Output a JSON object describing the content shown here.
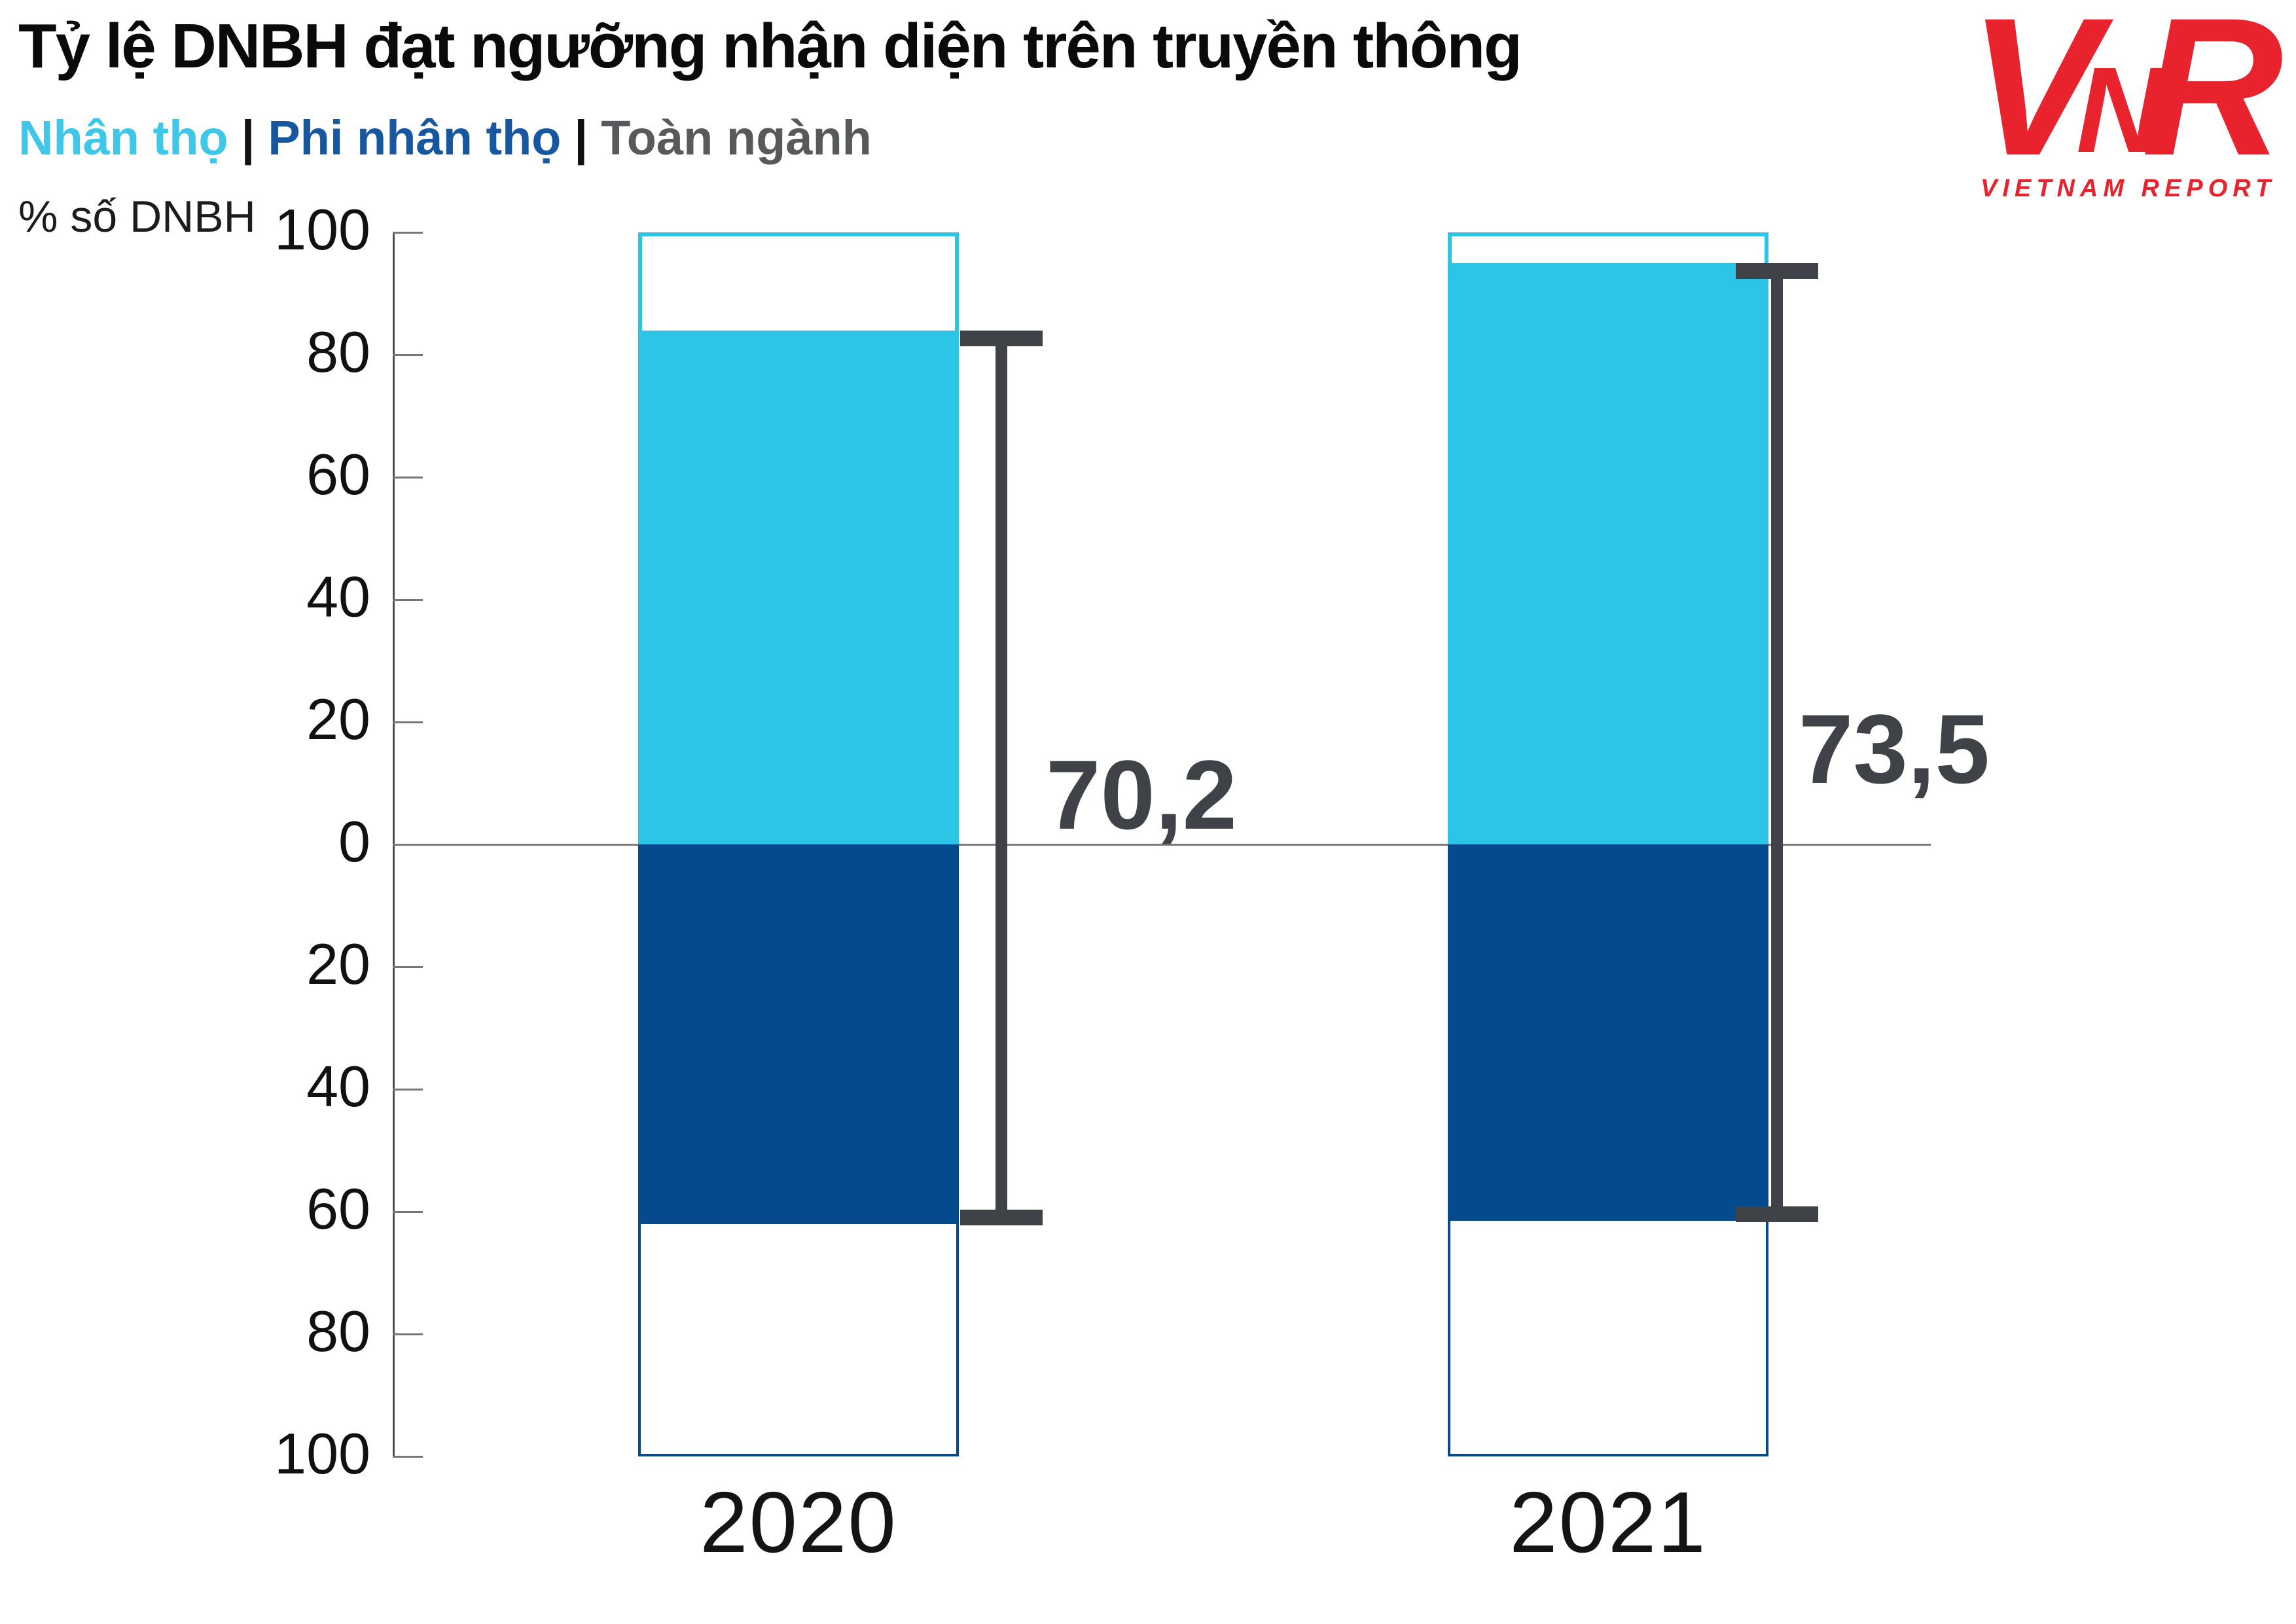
{
  "title": "Tỷ lệ DNBH đạt ngưỡng nhận diện trên truyền thông",
  "legend": {
    "separator": "|",
    "items": [
      {
        "label": "Nhân thọ",
        "color": "#3fc7e9"
      },
      {
        "label": "Phi nhân thọ",
        "color": "#1757a0"
      },
      {
        "label": "Toàn ngành",
        "color": "#58595b"
      }
    ]
  },
  "axis": {
    "unit_label": "% số DNBH",
    "tick_step": 20,
    "max": 100,
    "min": -100,
    "tick_labels": [
      100,
      80,
      60,
      40,
      20,
      0,
      20,
      40,
      60,
      80,
      100
    ],
    "labels_absolute": true
  },
  "logo": {
    "letters": [
      "V",
      "N",
      "R"
    ],
    "wordmark": "VIETNAM REPORT",
    "color": "#e8232d"
  },
  "chart_data": {
    "type": "bar",
    "subtype": "diverging stacked bars with range brackets",
    "title": "Tỷ lệ DNBH đạt ngưỡng nhận diện trên truyền thông",
    "ylabel": "% số DNBH",
    "ylim": [
      -100,
      100
    ],
    "tick_step": 20,
    "grid": false,
    "legend_position": "top-left",
    "categories": [
      "2020",
      "2021"
    ],
    "series": [
      {
        "name": "Nhân thọ",
        "direction": "up",
        "color": "#2cc5e5",
        "values": [
          84,
          95
        ]
      },
      {
        "name": "Phi nhân thọ",
        "direction": "down",
        "color": "#054a8c",
        "values": [
          62,
          61.5
        ]
      },
      {
        "name": "Toàn ngành",
        "representation": "bracket",
        "color": "#3f4246",
        "values": [
          70.2,
          73.5
        ],
        "value_labels": [
          "70,2",
          "73,5"
        ]
      }
    ]
  }
}
